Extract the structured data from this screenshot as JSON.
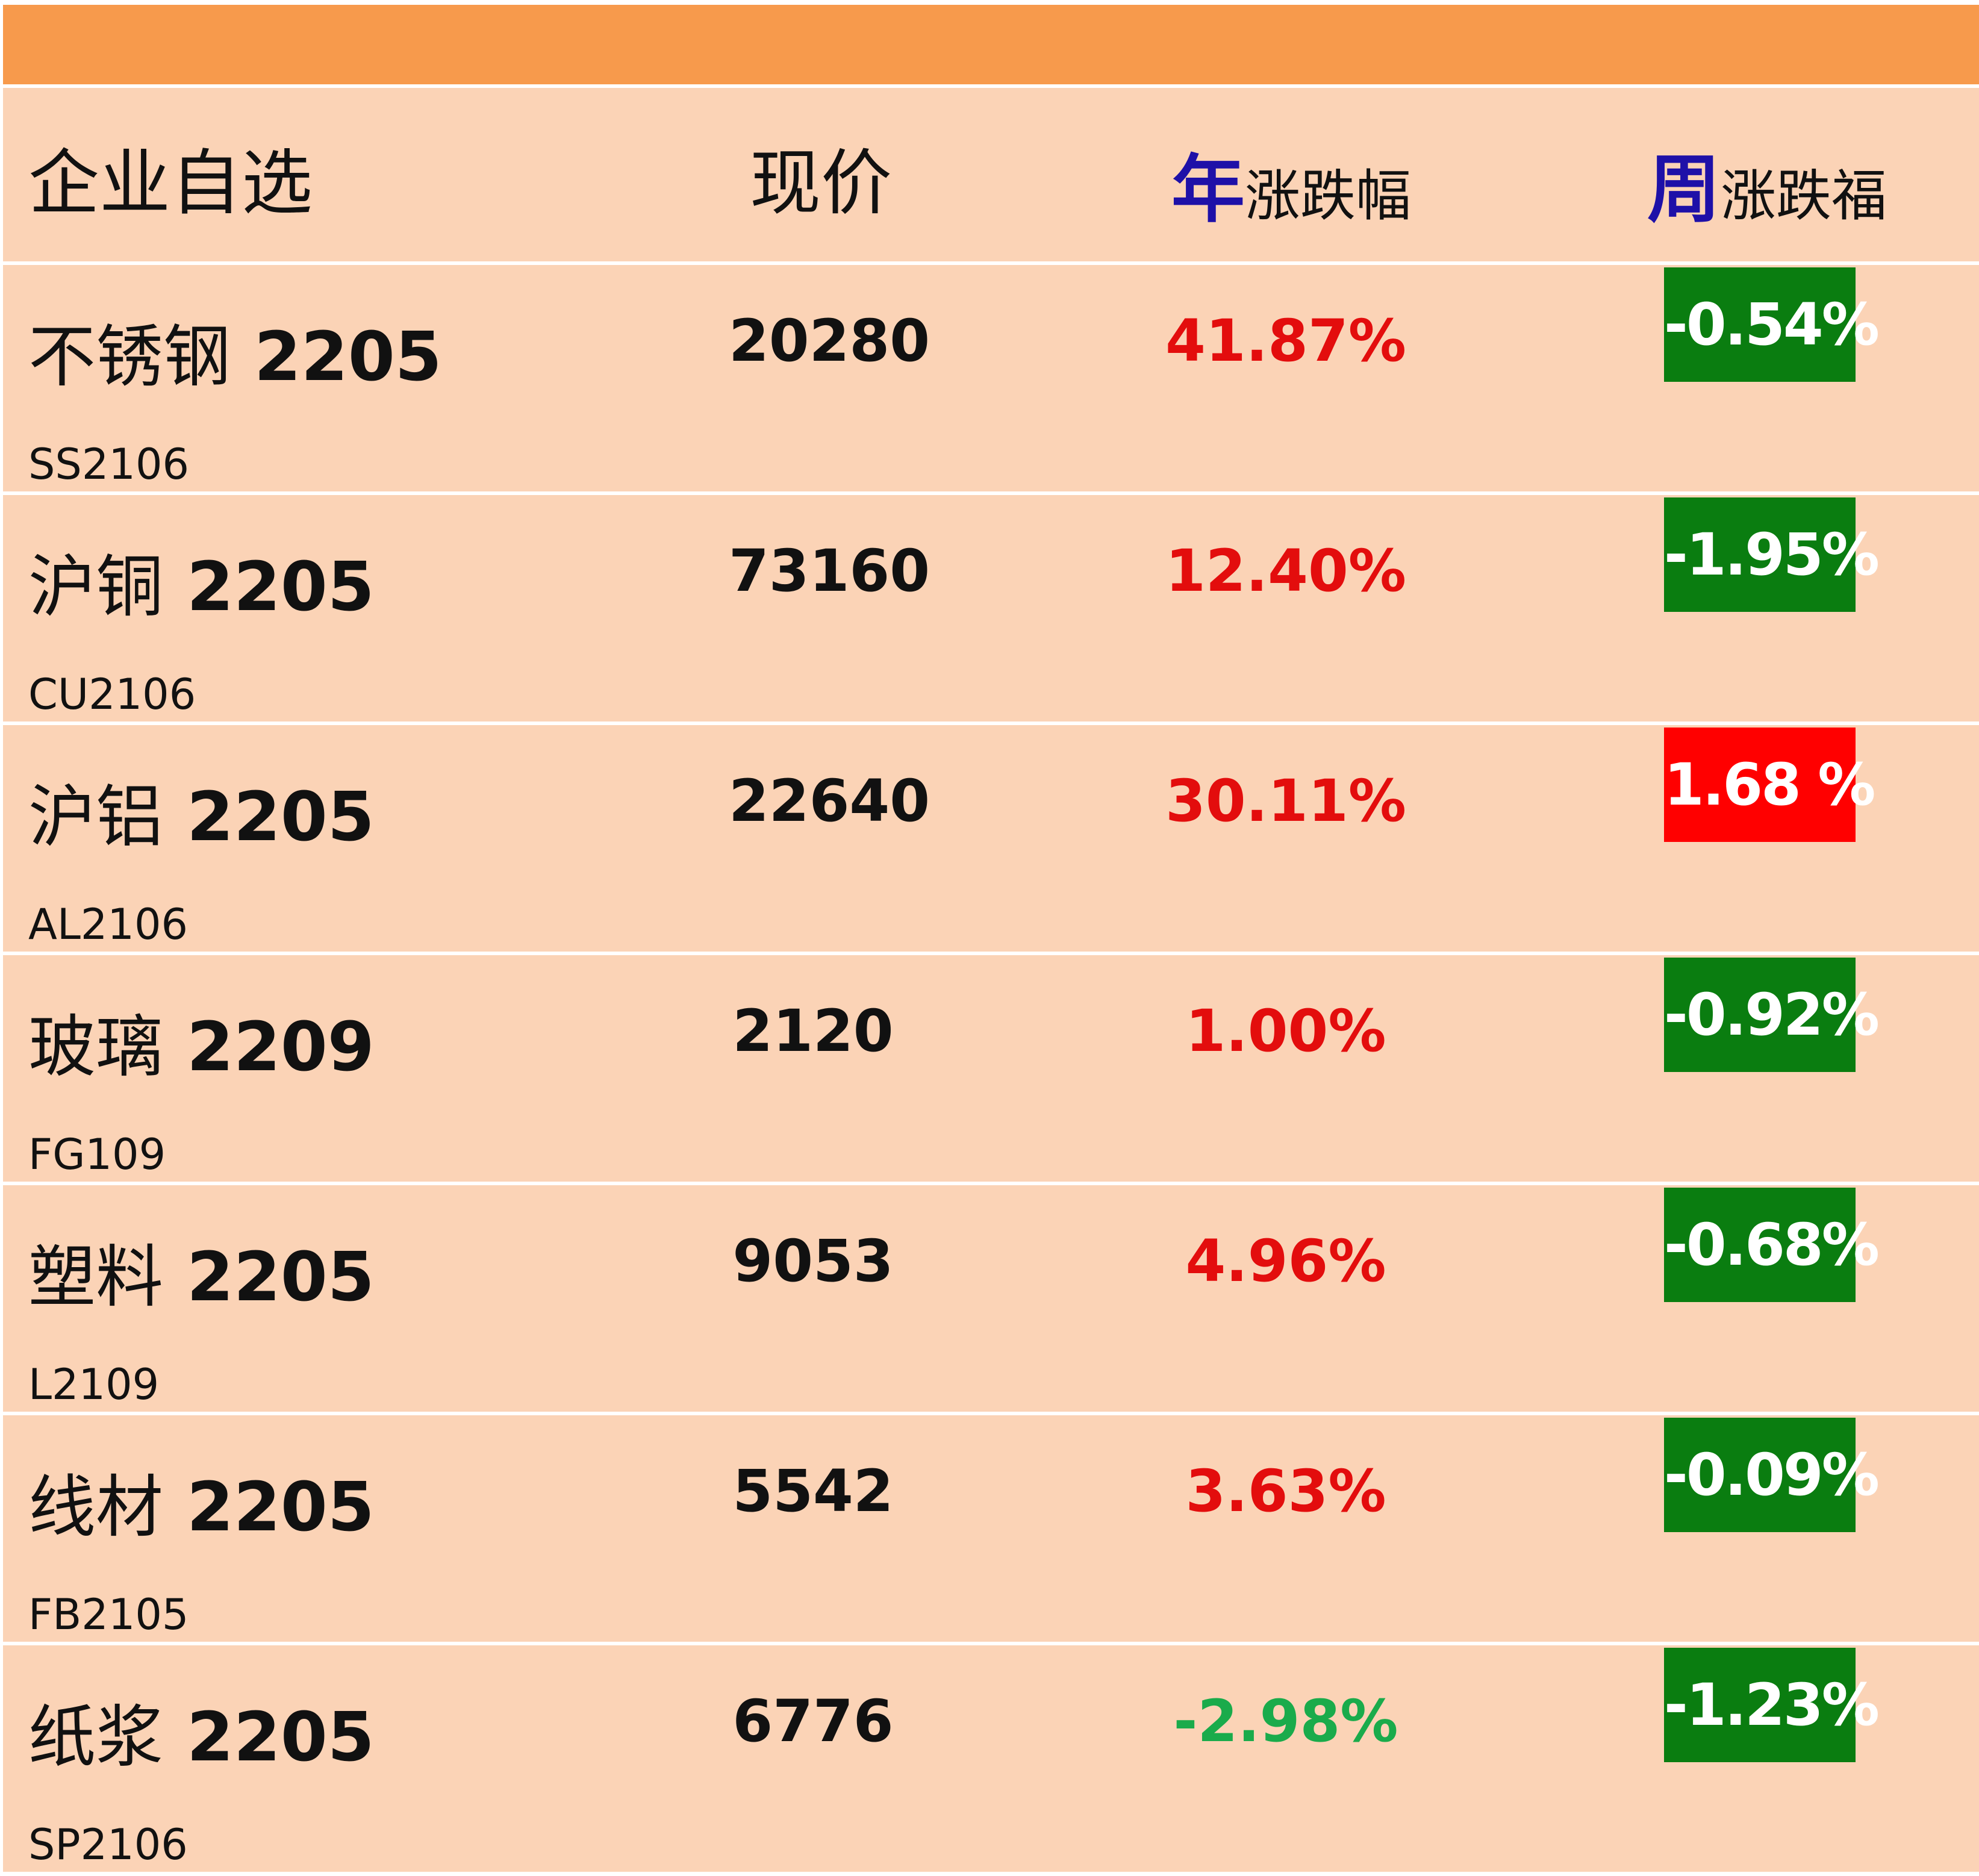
{
  "colors": {
    "top_bar": "#f79a4c",
    "row_bg": "#fbd3b6",
    "header_accent": "#1e10a8",
    "up_red": "#e30d0d",
    "down_green": "#1aab4b",
    "badge_green": "#0a7d10",
    "badge_red": "#ff0000"
  },
  "header": {
    "name": "企业自选",
    "price": "现价",
    "year_accent": "年",
    "year_rest": "涨跌幅",
    "week_accent": "周",
    "week_rest": "涨跌福"
  },
  "rows": [
    {
      "name": "不锈钢",
      "contract": "2205",
      "code": "SS2106",
      "price": "20280",
      "year": "41.87%",
      "year_dir": "up",
      "week": "-0.54%",
      "week_dir": "down"
    },
    {
      "name": "沪铜",
      "contract": "2205",
      "code": "CU2106",
      "price": "73160",
      "year": "12.40%",
      "year_dir": "up",
      "week": "-1.95%",
      "week_dir": "down"
    },
    {
      "name": "沪铝",
      "contract": "2205",
      "code": "AL2106",
      "price": "22640",
      "year": "30.11%",
      "year_dir": "up",
      "week": "1.68 %",
      "week_dir": "up"
    },
    {
      "name": "玻璃",
      "contract": "2209",
      "code": "FG109",
      "price": "2120",
      "year": "1.00%",
      "year_dir": "up",
      "week": "-0.92%",
      "week_dir": "down"
    },
    {
      "name": "塑料",
      "contract": "2205",
      "code": "L2109",
      "price": "9053",
      "year": "4.96%",
      "year_dir": "up",
      "week": "-0.68%",
      "week_dir": "down"
    },
    {
      "name": "线材",
      "contract": "2205",
      "code": "FB2105",
      "price": "5542",
      "year": "3.63%",
      "year_dir": "up",
      "week": "-0.09%",
      "week_dir": "down"
    },
    {
      "name": "纸浆",
      "contract": "2205",
      "code": "SP2106",
      "price": "6776",
      "year": "-2.98%",
      "year_dir": "down",
      "week": "-1.23%",
      "week_dir": "down"
    }
  ]
}
